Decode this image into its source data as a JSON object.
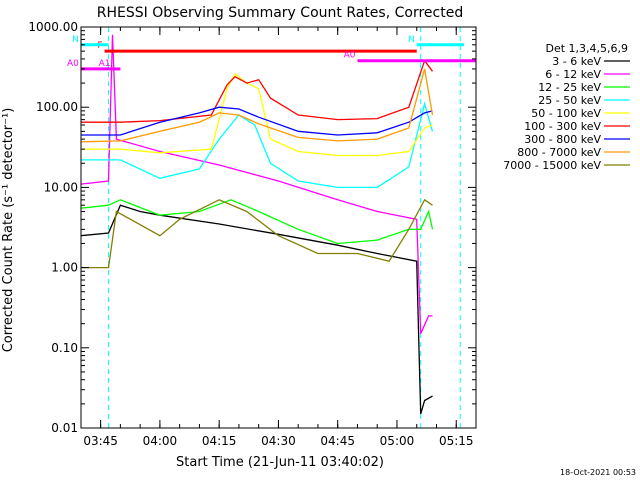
{
  "chart_data": {
    "type": "line",
    "title": "RHESSI Observing Summary Count Rates, Corrected",
    "xlabel": "Start Time (21-Jun-11 03:40:02)",
    "ylabel": "Corrected Count Rate (s⁻¹ detector⁻¹)",
    "y_scale": "log",
    "ylim": [
      0.01,
      1000
    ],
    "xlim": [
      "03:40:02",
      "05:20:00"
    ],
    "x_ticks": [
      "03:45",
      "04:00",
      "04:15",
      "04:30",
      "04:45",
      "05:00",
      "05:15"
    ],
    "y_ticks": [
      "0.01",
      "0.10",
      "1.00",
      "10.00",
      "100.00",
      "1000.00"
    ],
    "legend_title": "Det 1,3,4,5,6,9",
    "legend_position": "right",
    "footer": "18-Oct-2021 00:53",
    "flag_labels": [
      "F",
      "A0",
      "N",
      "A1"
    ],
    "series": [
      {
        "name": "3 - 6 keV",
        "color": "#000000",
        "points": [
          [
            "03:40",
            2.5
          ],
          [
            "03:47",
            2.7
          ],
          [
            "03:50",
            6
          ],
          [
            "03:55",
            5
          ],
          [
            "04:00",
            4.5
          ],
          [
            "04:15",
            3.5
          ],
          [
            "04:30",
            2.6
          ],
          [
            "04:45",
            1.9
          ],
          [
            "04:55",
            1.5
          ],
          [
            "05:05",
            1.2
          ],
          [
            "05:06",
            0.015
          ],
          [
            "05:07",
            0.022
          ],
          [
            "05:09",
            0.025
          ]
        ]
      },
      {
        "name": "6 - 12 keV",
        "color": "#ff00ff",
        "points": [
          [
            "03:40",
            11
          ],
          [
            "03:47",
            12
          ],
          [
            "03:48",
            800
          ],
          [
            "03:49",
            40
          ],
          [
            "04:00",
            28
          ],
          [
            "04:15",
            19
          ],
          [
            "04:30",
            12
          ],
          [
            "04:45",
            7
          ],
          [
            "04:55",
            5
          ],
          [
            "05:05",
            4
          ],
          [
            "05:06",
            0.15
          ],
          [
            "05:08",
            0.25
          ],
          [
            "05:09",
            0.25
          ]
        ]
      },
      {
        "name": "12 - 25 keV",
        "color": "#00ff00",
        "points": [
          [
            "03:40",
            5.5
          ],
          [
            "03:47",
            6
          ],
          [
            "03:50",
            7
          ],
          [
            "04:00",
            4.5
          ],
          [
            "04:10",
            5
          ],
          [
            "04:18",
            7
          ],
          [
            "04:25",
            5
          ],
          [
            "04:35",
            3
          ],
          [
            "04:45",
            2
          ],
          [
            "04:55",
            2.2
          ],
          [
            "05:03",
            3
          ],
          [
            "05:06",
            3
          ],
          [
            "05:08",
            5
          ],
          [
            "05:09",
            3
          ]
        ]
      },
      {
        "name": "25 - 50 keV",
        "color": "#00ffff",
        "points": [
          [
            "03:40",
            22
          ],
          [
            "03:50",
            22
          ],
          [
            "04:00",
            13
          ],
          [
            "04:10",
            17
          ],
          [
            "04:15",
            40
          ],
          [
            "04:20",
            80
          ],
          [
            "04:24",
            60
          ],
          [
            "04:28",
            20
          ],
          [
            "04:35",
            12
          ],
          [
            "04:45",
            10
          ],
          [
            "04:55",
            10
          ],
          [
            "05:03",
            18
          ],
          [
            "05:07",
            110
          ],
          [
            "05:09",
            50
          ]
        ]
      },
      {
        "name": "50 - 100 keV",
        "color": "#ffff00",
        "points": [
          [
            "03:40",
            30
          ],
          [
            "03:50",
            30
          ],
          [
            "04:00",
            27
          ],
          [
            "04:13",
            30
          ],
          [
            "04:17",
            170
          ],
          [
            "04:19",
            260
          ],
          [
            "04:22",
            200
          ],
          [
            "04:25",
            170
          ],
          [
            "04:28",
            40
          ],
          [
            "04:35",
            28
          ],
          [
            "04:45",
            25
          ],
          [
            "04:55",
            25
          ],
          [
            "05:03",
            28
          ],
          [
            "05:07",
            55
          ],
          [
            "05:09",
            60
          ]
        ]
      },
      {
        "name": "100 - 300 keV",
        "color": "#ff0000",
        "points": [
          [
            "03:40",
            65
          ],
          [
            "03:50",
            65
          ],
          [
            "04:00",
            68
          ],
          [
            "04:13",
            80
          ],
          [
            "04:17",
            190
          ],
          [
            "04:19",
            240
          ],
          [
            "04:22",
            200
          ],
          [
            "04:25",
            220
          ],
          [
            "04:28",
            130
          ],
          [
            "04:35",
            80
          ],
          [
            "04:45",
            70
          ],
          [
            "04:55",
            72
          ],
          [
            "05:03",
            100
          ],
          [
            "05:07",
            380
          ],
          [
            "05:09",
            280
          ]
        ]
      },
      {
        "name": "300 - 800 keV",
        "color": "#0000ff",
        "points": [
          [
            "03:40",
            45
          ],
          [
            "03:50",
            45
          ],
          [
            "04:00",
            65
          ],
          [
            "04:10",
            85
          ],
          [
            "04:15",
            100
          ],
          [
            "04:20",
            95
          ],
          [
            "04:25",
            75
          ],
          [
            "04:35",
            50
          ],
          [
            "04:45",
            45
          ],
          [
            "04:55",
            48
          ],
          [
            "05:03",
            65
          ],
          [
            "05:07",
            85
          ],
          [
            "05:09",
            90
          ]
        ]
      },
      {
        "name": "800 - 7000 keV",
        "color": "#ff9900",
        "points": [
          [
            "03:40",
            37
          ],
          [
            "03:50",
            38
          ],
          [
            "04:00",
            50
          ],
          [
            "04:10",
            65
          ],
          [
            "04:15",
            85
          ],
          [
            "04:20",
            80
          ],
          [
            "04:25",
            62
          ],
          [
            "04:35",
            42
          ],
          [
            "04:45",
            38
          ],
          [
            "04:55",
            40
          ],
          [
            "05:03",
            55
          ],
          [
            "05:07",
            300
          ],
          [
            "05:09",
            80
          ]
        ]
      },
      {
        "name": "7000 - 15000 keV",
        "color": "#808000",
        "points": [
          [
            "03:40",
            1.0
          ],
          [
            "03:47",
            1.0
          ],
          [
            "03:49",
            5
          ],
          [
            "04:00",
            2.5
          ],
          [
            "04:05",
            4
          ],
          [
            "04:15",
            7
          ],
          [
            "04:22",
            5
          ],
          [
            "04:30",
            2.5
          ],
          [
            "04:40",
            1.5
          ],
          [
            "04:50",
            1.5
          ],
          [
            "04:58",
            1.2
          ],
          [
            "05:03",
            3
          ],
          [
            "05:07",
            7
          ],
          [
            "05:09",
            6
          ]
        ]
      }
    ],
    "flags": [
      {
        "name": "F",
        "color": "#ff0000",
        "y": 500,
        "start": "03:46",
        "end": "05:05"
      },
      {
        "name": "A0",
        "color": "#ff00ff",
        "y": 300,
        "start": "03:40",
        "end": "03:48"
      },
      {
        "name": "A0",
        "color": "#ff00ff",
        "y": 380,
        "start": "04:50",
        "end": "05:20"
      },
      {
        "name": "A1",
        "color": "#ff00ff",
        "y": 300,
        "start": "03:48",
        "end": "03:50"
      },
      {
        "name": "N",
        "color": "#00ffff",
        "y": 600,
        "start": "03:40",
        "end": "03:47"
      },
      {
        "name": "N",
        "color": "#00ffff",
        "y": 600,
        "start": "05:05",
        "end": "05:17"
      }
    ],
    "eclipse_lines": [
      "03:47",
      "05:06",
      "05:16"
    ],
    "colors": {
      "axis": "#000000",
      "text": "#000000",
      "background": "#ffffff"
    }
  }
}
